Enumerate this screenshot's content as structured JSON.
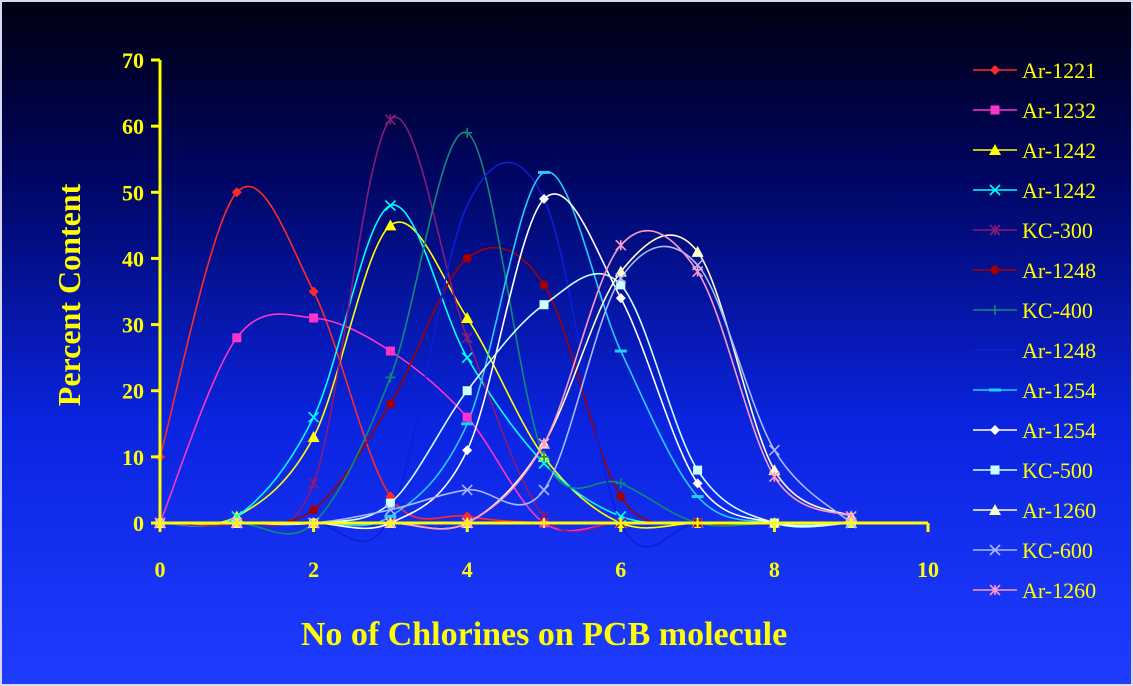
{
  "chart_data": {
    "type": "line",
    "title": "",
    "xlabel": "No of Chlorines on PCB molecule",
    "ylabel": "Percent Content",
    "xlim": [
      0,
      10
    ],
    "ylim": [
      0,
      70
    ],
    "xticks": [
      "0",
      "2",
      "4",
      "6",
      "8",
      "10"
    ],
    "yticks": [
      "0",
      "10",
      "20",
      "30",
      "40",
      "50",
      "60",
      "70"
    ],
    "grid": false,
    "legend_position": "right",
    "axis_color": "#ffff00",
    "series": [
      {
        "name": "Ar-1221",
        "color": "#ff2a2a",
        "marker": "diamond",
        "x": [
          0,
          1,
          2,
          3,
          4,
          5,
          6,
          7,
          8,
          9
        ],
        "y": [
          10,
          50,
          35,
          4,
          1,
          0,
          0,
          0,
          0,
          0
        ]
      },
      {
        "name": "Ar-1232",
        "color": "#ff33cc",
        "marker": "square",
        "x": [
          0,
          1,
          2,
          3,
          4,
          5,
          6,
          7,
          8,
          9
        ],
        "y": [
          0,
          28,
          31,
          26,
          16,
          0,
          0,
          0,
          0,
          0
        ]
      },
      {
        "name": "Ar-1242",
        "color": "#ffff00",
        "marker": "triangle",
        "x": [
          0,
          1,
          2,
          3,
          4,
          5,
          6,
          7,
          8,
          9
        ],
        "y": [
          0,
          1,
          13,
          45,
          31,
          10,
          0,
          0,
          0,
          0
        ]
      },
      {
        "name": "Ar-1242",
        "color": "#00ffff",
        "marker": "x",
        "x": [
          0,
          1,
          2,
          3,
          4,
          5,
          6,
          7,
          8,
          9
        ],
        "y": [
          0,
          1,
          16,
          48,
          25,
          9,
          1,
          0,
          0,
          0
        ]
      },
      {
        "name": "KC-300",
        "color": "#8a1a78",
        "marker": "star",
        "x": [
          0,
          1,
          2,
          3,
          4,
          5,
          6,
          7,
          8,
          9
        ],
        "y": [
          0,
          0,
          6,
          61,
          28,
          1,
          0,
          0,
          0,
          0
        ]
      },
      {
        "name": "Ar-1248",
        "color": "#a00000",
        "marker": "circle",
        "x": [
          0,
          1,
          2,
          3,
          4,
          5,
          6,
          7,
          8,
          9
        ],
        "y": [
          0,
          0,
          2,
          18,
          40,
          36,
          4,
          0,
          0,
          0
        ]
      },
      {
        "name": "KC-400",
        "color": "#118877",
        "marker": "plus",
        "x": [
          0,
          1,
          2,
          3,
          4,
          5,
          6,
          7,
          8,
          9
        ],
        "y": [
          0,
          0,
          0,
          22,
          59,
          10,
          6,
          0,
          0,
          0
        ]
      },
      {
        "name": "Ar-1248",
        "color": "#0a1fd8",
        "marker": "none",
        "x": [
          0,
          1,
          2,
          3,
          4,
          5,
          6,
          7,
          8,
          9
        ],
        "y": [
          0,
          0,
          0,
          1,
          48,
          49,
          0,
          0,
          0,
          0
        ]
      },
      {
        "name": "Ar-1254",
        "color": "#22ccff",
        "marker": "dash",
        "x": [
          0,
          1,
          2,
          3,
          4,
          5,
          6,
          7,
          8,
          9
        ],
        "y": [
          0,
          0,
          0,
          1,
          15,
          53,
          26,
          4,
          0,
          0
        ]
      },
      {
        "name": "Ar-1254",
        "color": "#ffffff",
        "marker": "diamond",
        "x": [
          0,
          1,
          2,
          3,
          4,
          5,
          6,
          7,
          8,
          9
        ],
        "y": [
          0,
          0,
          0,
          0,
          11,
          49,
          34,
          6,
          0,
          0
        ]
      },
      {
        "name": "KC-500",
        "color": "#ccffff",
        "marker": "square",
        "x": [
          0,
          1,
          2,
          3,
          4,
          5,
          6,
          7,
          8,
          9
        ],
        "y": [
          0,
          0,
          0,
          3,
          20,
          33,
          36,
          8,
          0,
          0
        ]
      },
      {
        "name": "Ar-1260",
        "color": "#ffffcc",
        "marker": "triangle",
        "x": [
          0,
          1,
          2,
          3,
          4,
          5,
          6,
          7,
          8,
          9
        ],
        "y": [
          0,
          0,
          0,
          0,
          0,
          12,
          38,
          41,
          8,
          1
        ]
      },
      {
        "name": "KC-600",
        "color": "#aab8ff",
        "marker": "x",
        "x": [
          0,
          1,
          2,
          3,
          4,
          5,
          6,
          7,
          8,
          9
        ],
        "y": [
          0,
          0,
          0,
          2,
          5,
          5,
          37,
          39,
          11,
          0
        ]
      },
      {
        "name": "Ar-1260",
        "color": "#ff99cc",
        "marker": "star",
        "x": [
          0,
          1,
          2,
          3,
          4,
          5,
          6,
          7,
          8,
          9
        ],
        "y": [
          0,
          0,
          0,
          0,
          0,
          12,
          42,
          38,
          7,
          1
        ]
      }
    ]
  }
}
